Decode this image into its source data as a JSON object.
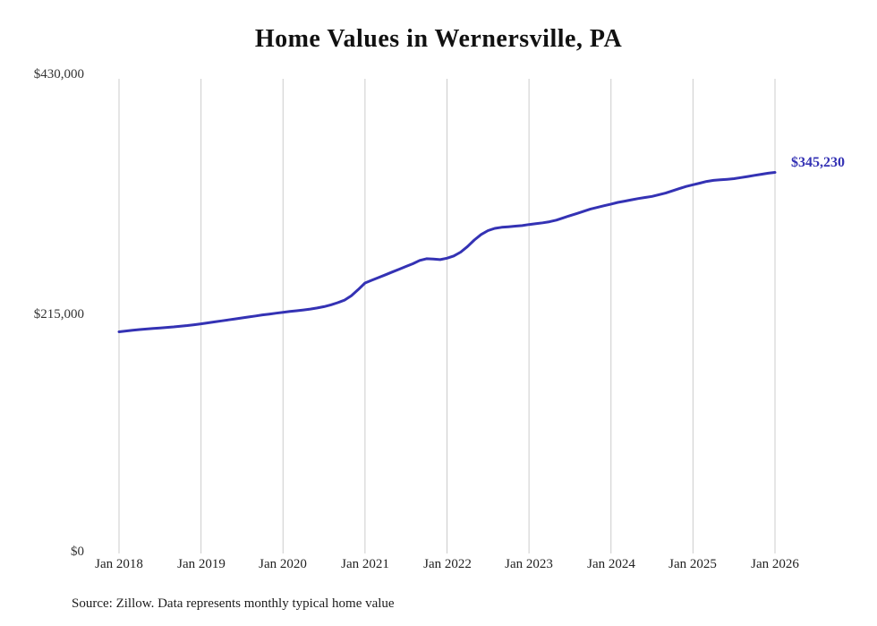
{
  "chart_data": {
    "type": "line",
    "title": "Home Values in Wernersville, PA",
    "xlabel": "",
    "ylabel": "",
    "frequency": "monthly",
    "x_start": "Jan 2018",
    "x_end": "Jan 2026",
    "x_tick_labels": [
      "Jan 2018",
      "Jan 2019",
      "Jan 2020",
      "Jan 2021",
      "Jan 2022",
      "Jan 2023",
      "Jan 2024",
      "Jan 2025",
      "Jan 2026"
    ],
    "y_tick_labels": [
      "$430,000",
      "$215,000",
      "$0"
    ],
    "ylim": [
      0,
      430000
    ],
    "grid": "vertical-only",
    "grid_color": "#cccccc",
    "line_color": "#3432b4",
    "end_label": "$345,230",
    "final_value": 345230,
    "values": [
      200800,
      201500,
      202200,
      202800,
      203300,
      203800,
      204300,
      204800,
      205300,
      205900,
      206500,
      207200,
      208000,
      208900,
      209800,
      210700,
      211600,
      212500,
      213400,
      214300,
      215200,
      216100,
      216900,
      217700,
      218500,
      219200,
      219900,
      220600,
      221400,
      222400,
      223600,
      225200,
      227200,
      229500,
      233500,
      239000,
      245000,
      247500,
      250000,
      252500,
      255000,
      257500,
      260000,
      262500,
      265500,
      267000,
      266800,
      266200,
      267500,
      269500,
      273000,
      278000,
      284000,
      289000,
      292500,
      294500,
      295500,
      296000,
      296500,
      297000,
      298000,
      298700,
      299500,
      300500,
      302000,
      304000,
      306000,
      308000,
      310000,
      312000,
      313500,
      315000,
      316500,
      318000,
      319200,
      320400,
      321500,
      322500,
      323500,
      325000,
      326500,
      328500,
      330500,
      332500,
      334000,
      335500,
      337000,
      338000,
      338500,
      339000,
      339500,
      340500,
      341500,
      342500,
      343500,
      344500,
      345230
    ]
  },
  "footer": {
    "source": "Source: Zillow. Data represents monthly typical home value"
  }
}
